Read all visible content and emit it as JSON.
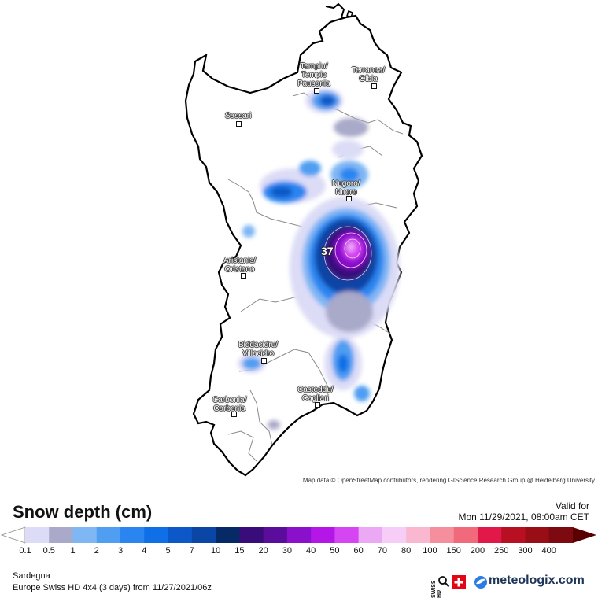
{
  "map": {
    "attribution": "Map data © OpenStreetMap contributors, rendering GIScience Research Group @ Heidelberg University",
    "peak_value": "37",
    "cities": [
      {
        "name": "Tempiu/\nTempio\nPausania"
      },
      {
        "name": "Terranoa/\nOlbia"
      },
      {
        "name": "Sassari"
      },
      {
        "name": "Nugoro/\nNuoro"
      },
      {
        "name": "Aristanis/\nOristano"
      },
      {
        "name": "Biddacidru/\nVillacidro"
      },
      {
        "name": "Casteddu/\nCagliari"
      },
      {
        "name": "Carbonia/\nCarbonia"
      }
    ]
  },
  "legend": {
    "title": "Snow depth (cm)",
    "valid_label": "Valid for",
    "valid_time": "Mon 11/29/2021, 08:00am CET",
    "ticks": [
      "0.1",
      "0.5",
      "1",
      "2",
      "3",
      "4",
      "5",
      "7",
      "10",
      "15",
      "20",
      "30",
      "40",
      "50",
      "60",
      "70",
      "80",
      "100",
      "150",
      "200",
      "250",
      "300",
      "400"
    ],
    "colors": [
      "#dcdcf6",
      "#a9a9c9",
      "#7fb6f4",
      "#4f9ef2",
      "#2a85f0",
      "#0f6fe6",
      "#0c58c8",
      "#0b45a6",
      "#062a66",
      "#380d7a",
      "#5a0d9a",
      "#8b10cc",
      "#b416e8",
      "#d545f2",
      "#eba8f4",
      "#f6cdf6",
      "#f9b8cf",
      "#f68f9d",
      "#f06a7c",
      "#e3184a",
      "#b80f22",
      "#980d16",
      "#7d0a10",
      "#5a0000"
    ]
  },
  "footer": {
    "region": "Sardegna",
    "model": "Europe Swiss HD 4x4 (3 days) from 11/27/2021/06z",
    "swiss_hd": "SWISS HD",
    "logo_text": "meteologix.com"
  }
}
